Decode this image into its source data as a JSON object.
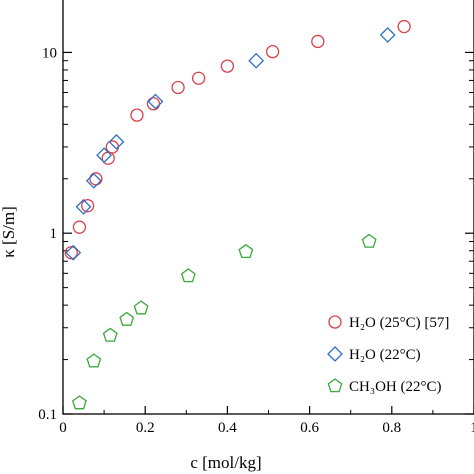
{
  "chart_data": {
    "type": "scatter",
    "xlabel": "c [mol/kg]",
    "ylabel": "κ [S/m]",
    "x_scale": "linear",
    "y_scale": "log",
    "xlim": [
      0,
      1.0
    ],
    "ylim": [
      0.1,
      20
    ],
    "x_ticks": [
      "0",
      "0.2",
      "0.4",
      "0.6",
      "0.8",
      "1"
    ],
    "y_ticks": [
      "0.1",
      "1",
      "10"
    ],
    "legend_position": "bottom-right",
    "series": [
      {
        "name": "H₂O (25°C) [57]",
        "marker": "circle",
        "color": "#d9404a",
        "points": [
          {
            "x": 0.02,
            "y": 0.78
          },
          {
            "x": 0.04,
            "y": 1.08
          },
          {
            "x": 0.06,
            "y": 1.42
          },
          {
            "x": 0.08,
            "y": 2.0
          },
          {
            "x": 0.11,
            "y": 2.6
          },
          {
            "x": 0.12,
            "y": 3.0
          },
          {
            "x": 0.18,
            "y": 4.5
          },
          {
            "x": 0.22,
            "y": 5.2
          },
          {
            "x": 0.28,
            "y": 6.4
          },
          {
            "x": 0.33,
            "y": 7.2
          },
          {
            "x": 0.4,
            "y": 8.4
          },
          {
            "x": 0.51,
            "y": 10.1
          },
          {
            "x": 0.62,
            "y": 11.5
          },
          {
            "x": 0.83,
            "y": 13.9
          }
        ]
      },
      {
        "name": "H₂O (22°C)",
        "marker": "diamond",
        "color": "#2f6fc6",
        "points": [
          {
            "x": 0.025,
            "y": 0.78
          },
          {
            "x": 0.05,
            "y": 1.4
          },
          {
            "x": 0.075,
            "y": 1.95
          },
          {
            "x": 0.1,
            "y": 2.7
          },
          {
            "x": 0.13,
            "y": 3.2
          },
          {
            "x": 0.225,
            "y": 5.35
          },
          {
            "x": 0.47,
            "y": 9.0
          },
          {
            "x": 0.79,
            "y": 12.5
          }
        ]
      },
      {
        "name": "CH₃OH (22°C)",
        "marker": "pentagon",
        "color": "#3aa83a",
        "points": [
          {
            "x": 0.04,
            "y": 0.115
          },
          {
            "x": 0.075,
            "y": 0.196
          },
          {
            "x": 0.115,
            "y": 0.272
          },
          {
            "x": 0.155,
            "y": 0.333
          },
          {
            "x": 0.19,
            "y": 0.385
          },
          {
            "x": 0.305,
            "y": 0.58
          },
          {
            "x": 0.445,
            "y": 0.79
          },
          {
            "x": 0.745,
            "y": 0.9
          }
        ]
      }
    ]
  }
}
